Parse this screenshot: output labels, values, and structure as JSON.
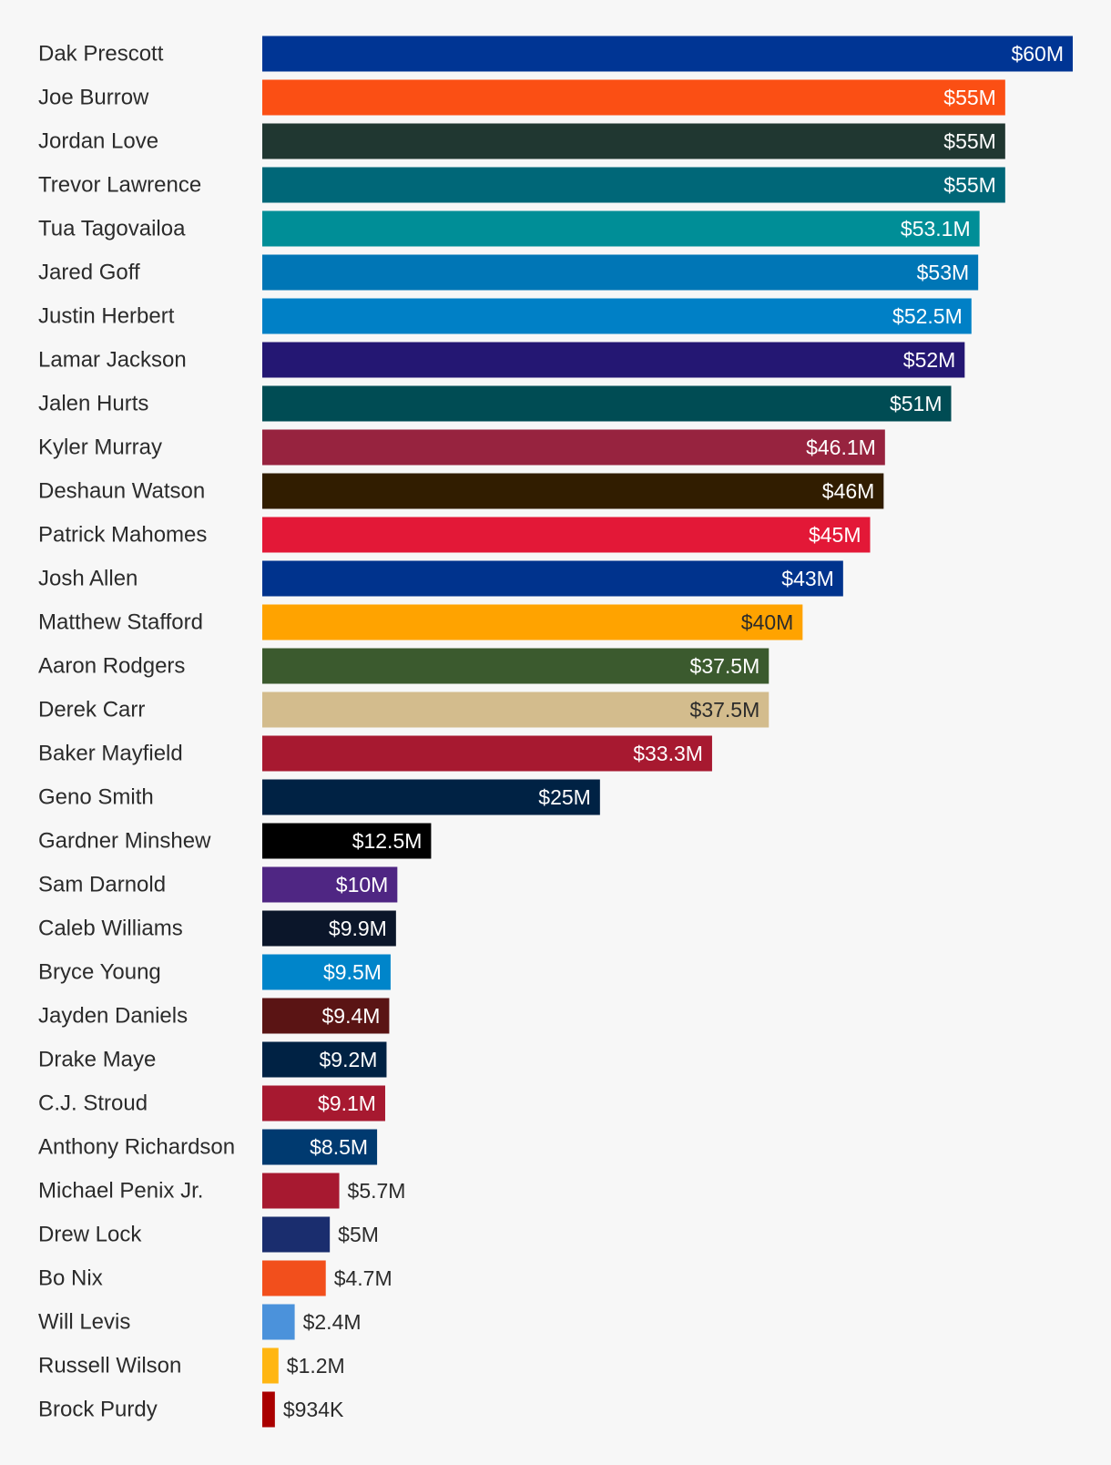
{
  "chart_data": {
    "type": "bar",
    "orientation": "horizontal",
    "xlim": [
      0,
      60
    ],
    "unit": "M",
    "grid": false,
    "legend": "none",
    "title": "",
    "xlabel": "",
    "ylabel": "",
    "bars": [
      {
        "name": "Dak Prescott",
        "value": 60,
        "label": "$60M",
        "color": "#003594",
        "text_color": "#ffffff"
      },
      {
        "name": "Joe Burrow",
        "value": 55,
        "label": "$55M",
        "color": "#fb4f14",
        "text_color": "#ffffff"
      },
      {
        "name": "Jordan Love",
        "value": 55,
        "label": "$55M",
        "color": "#203731",
        "text_color": "#ffffff"
      },
      {
        "name": "Trevor Lawrence",
        "value": 55,
        "label": "$55M",
        "color": "#006778",
        "text_color": "#ffffff"
      },
      {
        "name": "Tua Tagovailoa",
        "value": 53.1,
        "label": "$53.1M",
        "color": "#008e97",
        "text_color": "#ffffff"
      },
      {
        "name": "Jared Goff",
        "value": 53,
        "label": "$53M",
        "color": "#0076b6",
        "text_color": "#ffffff"
      },
      {
        "name": "Justin Herbert",
        "value": 52.5,
        "label": "$52.5M",
        "color": "#0080c6",
        "text_color": "#ffffff"
      },
      {
        "name": "Lamar Jackson",
        "value": 52,
        "label": "$52M",
        "color": "#241773",
        "text_color": "#ffffff"
      },
      {
        "name": "Jalen Hurts",
        "value": 51,
        "label": "$51M",
        "color": "#004c54",
        "text_color": "#ffffff"
      },
      {
        "name": "Kyler Murray",
        "value": 46.1,
        "label": "$46.1M",
        "color": "#97233f",
        "text_color": "#ffffff"
      },
      {
        "name": "Deshaun Watson",
        "value": 46,
        "label": "$46M",
        "color": "#311d00",
        "text_color": "#ffffff"
      },
      {
        "name": "Patrick Mahomes",
        "value": 45,
        "label": "$45M",
        "color": "#e31837",
        "text_color": "#ffffff"
      },
      {
        "name": "Josh Allen",
        "value": 43,
        "label": "$43M",
        "color": "#00338d",
        "text_color": "#ffffff"
      },
      {
        "name": "Matthew Stafford",
        "value": 40,
        "label": "$40M",
        "color": "#ffa300",
        "text_color": "#2b2b2b"
      },
      {
        "name": "Aaron Rodgers",
        "value": 37.5,
        "label": "$37.5M",
        "color": "#3b5a2e",
        "text_color": "#ffffff"
      },
      {
        "name": "Derek Carr",
        "value": 37.5,
        "label": "$37.5M",
        "color": "#d3bc8d",
        "text_color": "#2b2b2b"
      },
      {
        "name": "Baker Mayfield",
        "value": 33.3,
        "label": "$33.3M",
        "color": "#a71930",
        "text_color": "#ffffff"
      },
      {
        "name": "Geno Smith",
        "value": 25,
        "label": "$25M",
        "color": "#002244",
        "text_color": "#ffffff"
      },
      {
        "name": "Gardner Minshew",
        "value": 12.5,
        "label": "$12.5M",
        "color": "#000000",
        "text_color": "#ffffff"
      },
      {
        "name": "Sam Darnold",
        "value": 10,
        "label": "$10M",
        "color": "#4f2683",
        "text_color": "#ffffff"
      },
      {
        "name": "Caleb Williams",
        "value": 9.9,
        "label": "$9.9M",
        "color": "#0b162a",
        "text_color": "#ffffff"
      },
      {
        "name": "Bryce Young",
        "value": 9.5,
        "label": "$9.5M",
        "color": "#0085ca",
        "text_color": "#ffffff"
      },
      {
        "name": "Jayden Daniels",
        "value": 9.4,
        "label": "$9.4M",
        "color": "#5a1414",
        "text_color": "#ffffff"
      },
      {
        "name": "Drake Maye",
        "value": 9.2,
        "label": "$9.2M",
        "color": "#002244",
        "text_color": "#ffffff"
      },
      {
        "name": "C.J. Stroud",
        "value": 9.1,
        "label": "$9.1M",
        "color": "#a71930",
        "text_color": "#ffffff"
      },
      {
        "name": "Anthony Richardson",
        "value": 8.5,
        "label": "$8.5M",
        "color": "#003a70",
        "text_color": "#ffffff"
      },
      {
        "name": "Michael Penix Jr.",
        "value": 5.7,
        "label": "$5.7M",
        "color": "#a71930",
        "text_color": "#2b2b2b"
      },
      {
        "name": "Drew Lock",
        "value": 5,
        "label": "$5M",
        "color": "#1a2d6e",
        "text_color": "#ffffff"
      },
      {
        "name": "Bo Nix",
        "value": 4.7,
        "label": "$4.7M",
        "color": "#f24f1c",
        "text_color": "#2b2b2b"
      },
      {
        "name": "Will Levis",
        "value": 2.4,
        "label": "$2.4M",
        "color": "#4b92db",
        "text_color": "#2b2b2b"
      },
      {
        "name": "Russell Wilson",
        "value": 1.2,
        "label": "$1.2M",
        "color": "#ffb612",
        "text_color": "#2b2b2b"
      },
      {
        "name": "Brock Purdy",
        "value": 0.934,
        "label": "$934K",
        "color": "#aa0000",
        "text_color": "#2b2b2b"
      }
    ]
  }
}
